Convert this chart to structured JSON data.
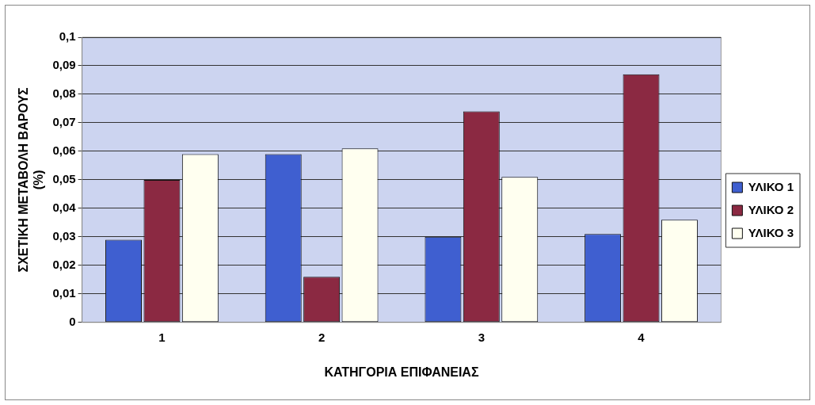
{
  "chart_data": {
    "type": "bar",
    "xlabel": "ΚΑΤΗΓΟΡΙΑ ΕΠΙΦΑΝΕΙΑΣ",
    "ylabel": "ΣΧΕΤΙΚΗ ΜΕΤΑΒΟΛΗ ΒΑΡΟΥΣ (%)",
    "categories": [
      "1",
      "2",
      "3",
      "4"
    ],
    "series": [
      {
        "name": "ΥΛΙΚΟ 1",
        "color": "#3f5fd0",
        "values": [
          0.029,
          0.059,
          0.03,
          0.031
        ]
      },
      {
        "name": "ΥΛΙΚΟ 2",
        "color": "#8b2942",
        "values": [
          0.05,
          0.016,
          0.074,
          0.087
        ]
      },
      {
        "name": "ΥΛΙΚΟ 3",
        "color": "#fffff0",
        "values": [
          0.059,
          0.061,
          0.051,
          0.036
        ]
      }
    ],
    "ylim": [
      0,
      0.1
    ],
    "yticks": [
      {
        "value": 0,
        "label": "0"
      },
      {
        "value": 0.01,
        "label": "0,01"
      },
      {
        "value": 0.02,
        "label": "0,02"
      },
      {
        "value": 0.03,
        "label": "0,03"
      },
      {
        "value": 0.04,
        "label": "0,04"
      },
      {
        "value": 0.05,
        "label": "0,05"
      },
      {
        "value": 0.06,
        "label": "0,06"
      },
      {
        "value": 0.07,
        "label": "0,07"
      },
      {
        "value": 0.08,
        "label": "0,08"
      },
      {
        "value": 0.09,
        "label": "0,09"
      },
      {
        "value": 0.1,
        "label": "0,1"
      }
    ],
    "grid": "y",
    "legend": "right"
  }
}
